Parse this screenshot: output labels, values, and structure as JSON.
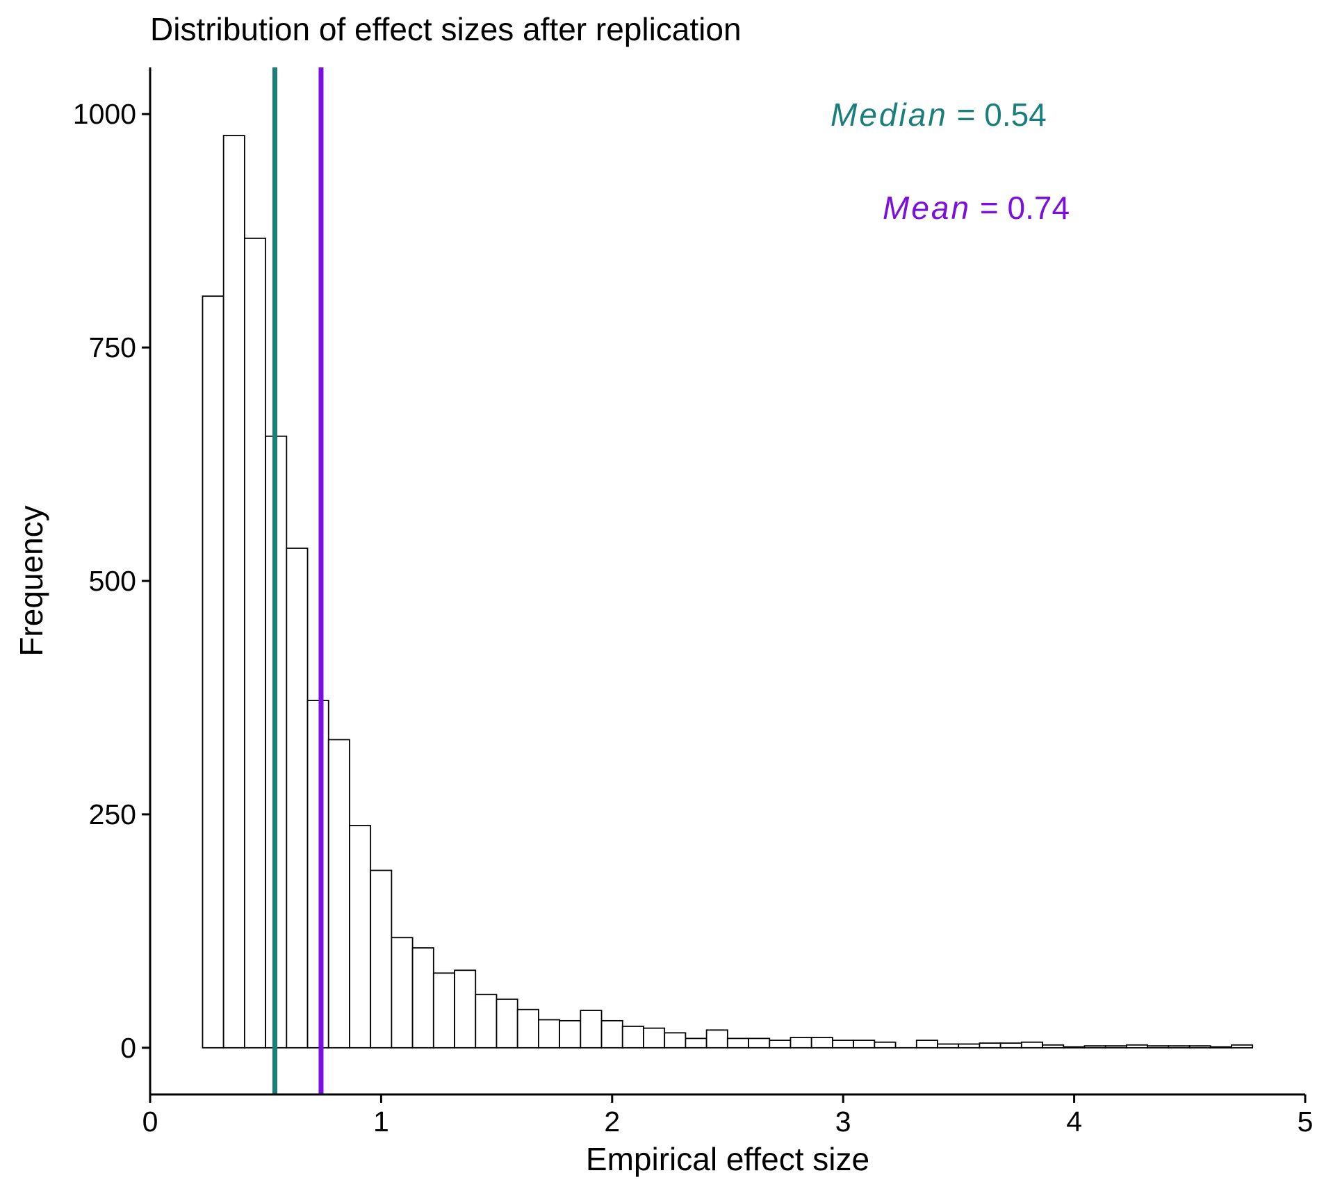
{
  "chart_data": {
    "type": "bar",
    "title": "Distribution of effect sizes after replication",
    "xlabel": "Empirical effect size",
    "ylabel": "Frequency",
    "xlim": [
      0,
      5
    ],
    "ylim": [
      -50,
      1050
    ],
    "x_ticks": [
      0,
      1,
      2,
      3,
      4,
      5
    ],
    "x_tick_labels": [
      "0",
      "1",
      "2",
      "3",
      "4",
      "5"
    ],
    "y_ticks": [
      0,
      250,
      500,
      750,
      1000
    ],
    "y_tick_labels": [
      "0",
      "250",
      "500",
      "750",
      "1000"
    ],
    "grid": false,
    "bin_width": 0.0909,
    "bin_start": 0.227,
    "values": [
      805,
      977,
      867,
      655,
      535,
      372,
      330,
      238,
      190,
      118,
      107,
      80,
      83,
      57,
      52,
      41,
      30,
      29,
      40,
      29,
      23,
      21,
      16,
      10,
      19,
      10,
      10,
      8,
      11,
      11,
      8,
      8,
      6,
      0,
      8,
      4,
      4,
      5,
      5,
      6,
      3,
      1,
      2,
      2,
      3,
      2,
      2,
      2,
      1,
      3
    ],
    "reference_lines": [
      {
        "name": "Median",
        "value": 0.54,
        "label_name": "Median",
        "label_value": " = 0.54",
        "color": "#1a7f7a"
      },
      {
        "name": "Mean",
        "value": 0.74,
        "label_name": "Mean",
        "label_value": " = 0.74",
        "color": "#7a0fe0"
      }
    ],
    "bar_fill": "#ffffff",
    "bar_stroke": "#000000"
  }
}
